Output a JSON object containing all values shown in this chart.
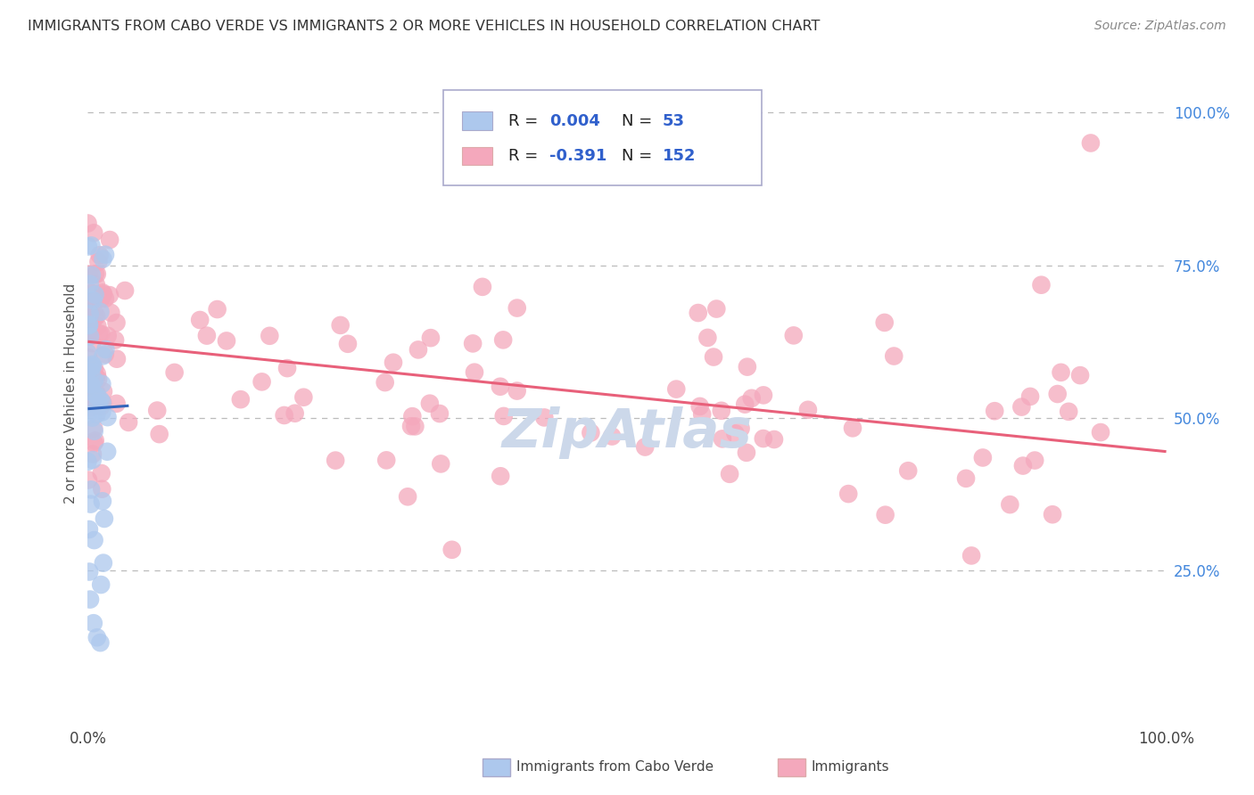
{
  "title": "IMMIGRANTS FROM CABO VERDE VS IMMIGRANTS 2 OR MORE VEHICLES IN HOUSEHOLD CORRELATION CHART",
  "source": "Source: ZipAtlas.com",
  "ylabel": "2 or more Vehicles in Household",
  "blue_color": "#adc8ed",
  "pink_color": "#f4a8bc",
  "blue_line_color": "#3366bb",
  "pink_line_color": "#e8607a",
  "legend_text_color": "#3060cc",
  "title_color": "#333333",
  "grid_color": "#bbbbbb",
  "bg_color": "#ffffff",
  "watermark_color": "#ccd8ea",
  "xlim": [
    0.0,
    1.0
  ],
  "ylim": [
    0.0,
    1.08
  ],
  "blue_trend_x_start": 0.0,
  "blue_trend_x_end": 0.038,
  "blue_trend_y_start": 0.515,
  "blue_trend_y_end": 0.52,
  "pink_trend_x_start": 0.0,
  "pink_trend_x_end": 1.0,
  "pink_trend_y_start": 0.625,
  "pink_trend_y_end": 0.445
}
